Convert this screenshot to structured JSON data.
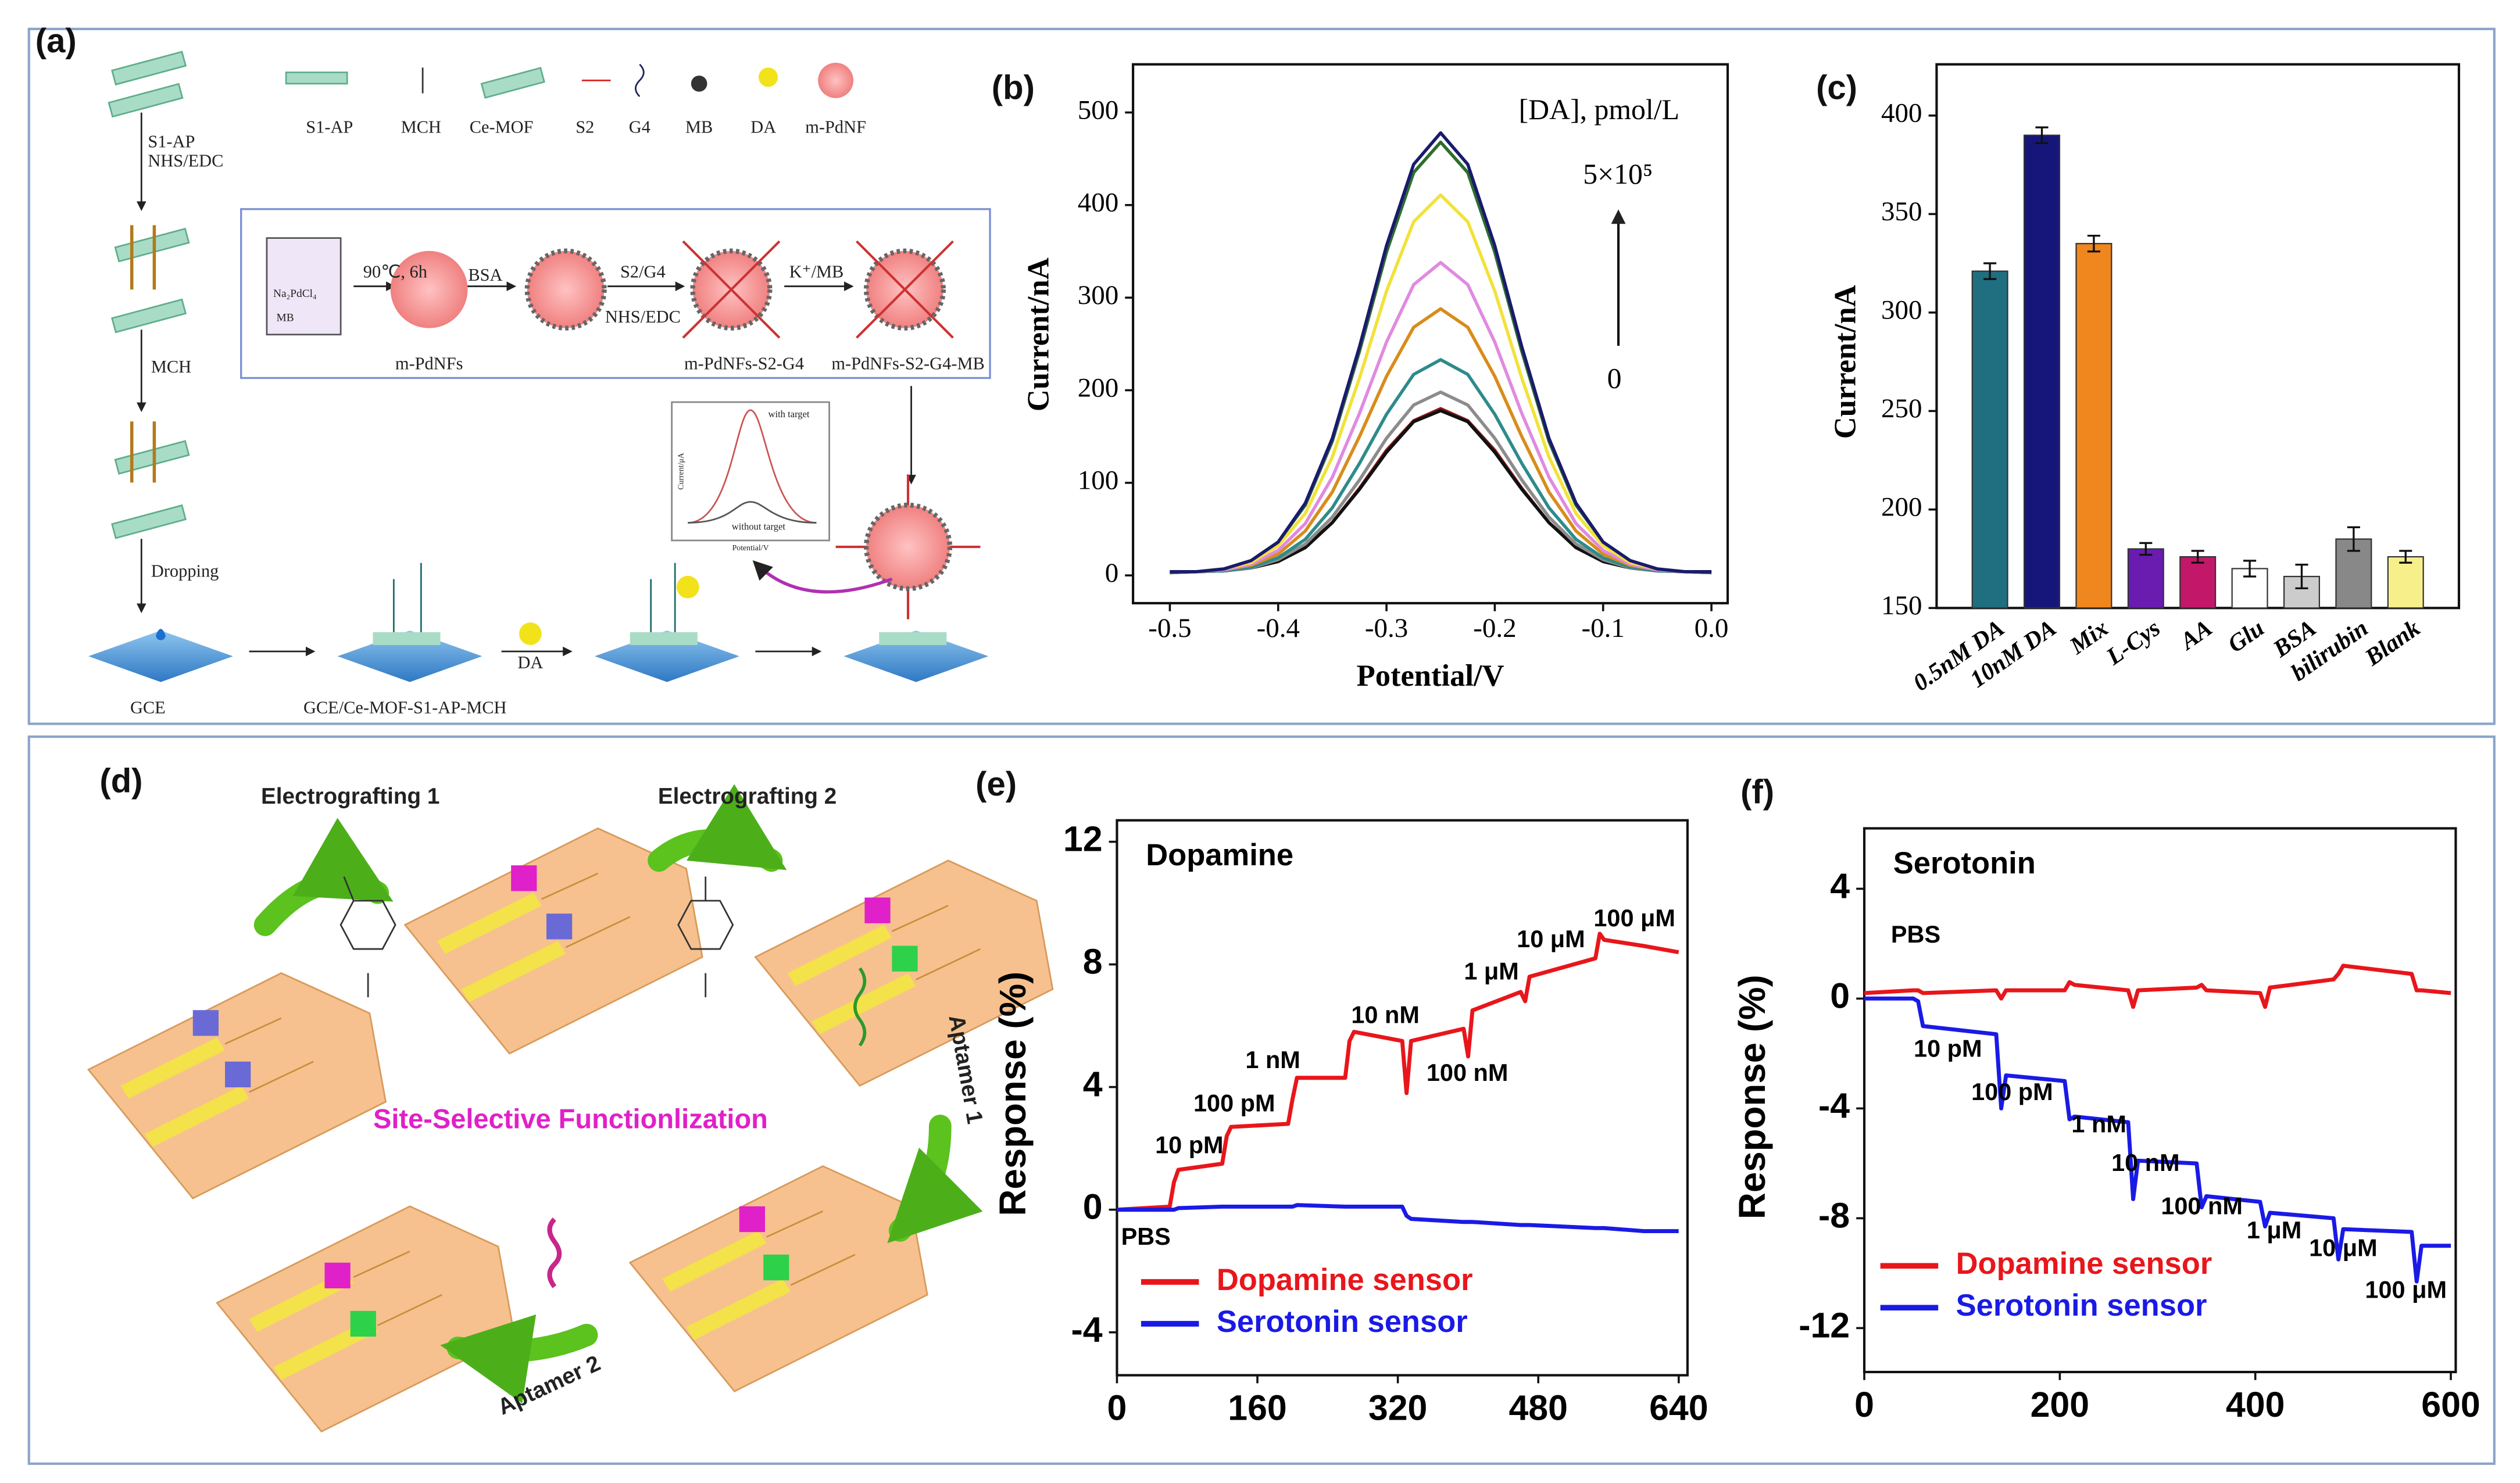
{
  "panel_labels": [
    "(a)",
    "(b)",
    "(c)",
    "(d)",
    "(e)",
    "(f)"
  ],
  "diagram_a": {
    "legend": [
      "S1-AP",
      "MCH",
      "Ce-MOF",
      "S2",
      "G4",
      "MB",
      "DA",
      "m-PdNF"
    ],
    "steps": [
      "S1-AP",
      "NHS/EDC",
      "MCH",
      "Dropping",
      "DA",
      "90℃, 6h",
      "BSA",
      "S2/G4",
      "NHS/EDC",
      "K⁺/MB"
    ],
    "products": [
      "GCE",
      "GCE/Ce-MOF-S1-AP-MCH",
      "m-PdNFs",
      "m-PdNFs-S2-G4",
      "m-PdNFs-S2-G4-MB"
    ],
    "beaker": [
      "Na₂PdCl₄",
      "MB"
    ],
    "inset": {
      "curves": [
        "with target",
        "without target"
      ],
      "xlabel": "Potential/V",
      "ylabel": "Current/μA"
    }
  },
  "diagram_d": {
    "steps": [
      "Electrografting 1",
      "Electrografting 2",
      "Aptamer 1",
      "Aptamer 2"
    ],
    "center": "Site-Selective Functionlization"
  },
  "chart_data": [
    {
      "type": "line",
      "xlabel": "Potential/V",
      "ylabel": "Current/nA",
      "annotations": [
        "[DA], pmol/L",
        "5×10⁵",
        "0"
      ],
      "x": [
        -0.5,
        -0.475,
        -0.45,
        -0.425,
        -0.4,
        -0.375,
        -0.35,
        -0.325,
        -0.3,
        -0.275,
        -0.25,
        -0.225,
        -0.2,
        -0.175,
        -0.15,
        -0.125,
        -0.1,
        -0.075,
        -0.05,
        -0.025,
        0
      ],
      "xlim": [
        -0.534,
        0.015
      ],
      "xticks": [
        -0.5,
        -0.4,
        -0.3,
        -0.2,
        -0.1,
        {
          "value": 0,
          "label": "0.0"
        }
      ],
      "ylim": [
        -30,
        552
      ],
      "yticks": [
        0,
        100,
        200,
        300,
        400,
        500
      ],
      "series": [
        {
          "color": "#8b1a1a",
          "values": [
            3,
            4,
            5,
            8,
            15,
            31,
            57,
            94,
            135,
            167,
            180,
            167,
            135,
            94,
            57,
            31,
            15,
            8,
            5,
            4,
            3
          ]
        },
        {
          "color": "#111111",
          "values": [
            3,
            4,
            5,
            8,
            15,
            30,
            57,
            93,
            133,
            166,
            178,
            166,
            133,
            93,
            57,
            30,
            15,
            8,
            5,
            4,
            3
          ]
        },
        {
          "color": "#8c8c8c",
          "values": [
            3,
            4,
            5,
            8,
            17,
            34,
            63,
            103,
            148,
            184,
            198,
            184,
            148,
            103,
            63,
            34,
            17,
            8,
            5,
            4,
            3
          ]
        },
        {
          "color": "#2e8b8b",
          "values": [
            3,
            4,
            5,
            9,
            19,
            39,
            73,
            121,
            174,
            217,
            233,
            217,
            174,
            121,
            73,
            39,
            19,
            9,
            5,
            4,
            3
          ]
        },
        {
          "color": "#d98c1a",
          "values": [
            3,
            4,
            6,
            11,
            23,
            48,
            90,
            150,
            215,
            268,
            288,
            268,
            215,
            150,
            90,
            48,
            23,
            11,
            6,
            4,
            3
          ]
        },
        {
          "color": "#e08ae0",
          "values": [
            3,
            4,
            6,
            12,
            27,
            56,
            106,
            175,
            252,
            314,
            338,
            314,
            252,
            175,
            106,
            56,
            27,
            12,
            6,
            4,
            3
          ]
        },
        {
          "color": "#f2e23a",
          "values": [
            3,
            4,
            7,
            14,
            32,
            67,
            128,
            213,
            307,
            382,
            411,
            382,
            307,
            213,
            128,
            67,
            32,
            14,
            7,
            4,
            3
          ]
        },
        {
          "color": "#2d6e2d",
          "values": [
            3,
            4,
            7,
            16,
            36,
            76,
            145,
            242,
            349,
            435,
            468,
            435,
            349,
            242,
            145,
            76,
            36,
            16,
            7,
            4,
            3
          ]
        },
        {
          "color": "#1a1a6e",
          "values": [
            4,
            4,
            7,
            16,
            36,
            78,
            148,
            247,
            356,
            444,
            478,
            444,
            356,
            247,
            148,
            78,
            36,
            16,
            7,
            4,
            4
          ]
        }
      ]
    },
    {
      "type": "bar",
      "ylabel": "Current/nA",
      "categories": [
        "0.5nM DA",
        "10nM DA",
        "Mix",
        "L-Cys",
        "AA",
        "Glu",
        "BSA",
        "bilirubin",
        "Blank"
      ],
      "values": [
        321,
        390,
        335,
        180,
        176,
        170,
        166,
        185,
        176
      ],
      "errors": [
        4,
        4,
        4,
        3,
        3,
        4,
        6,
        6,
        3
      ],
      "colors": [
        "#1f6f80",
        "#16167a",
        "#f0861e",
        "#6a1bb0",
        "#c3186a",
        "#ffffff",
        "#cccccc",
        "#888888",
        "#f7ef8a"
      ],
      "ylim": [
        150,
        426
      ],
      "yticks": [
        150,
        200,
        250,
        300,
        350,
        400
      ]
    },
    {
      "type": "line",
      "title": "Dopamine",
      "ylabel": "Response (%)",
      "legend": "lower left",
      "annotations": [
        "PBS",
        "10 pM",
        "100 pM",
        "1 nM",
        "10 nM",
        "100 nM",
        "1 μM",
        "10 μM",
        "100 μM"
      ],
      "x": [
        0,
        60,
        65,
        70,
        120,
        125,
        130,
        195,
        200,
        205,
        260,
        265,
        270,
        325,
        330,
        335,
        395,
        400,
        405,
        460,
        465,
        470,
        545,
        550,
        555,
        600,
        640
      ],
      "xlim": [
        0,
        650
      ],
      "xticks": [
        0,
        160,
        320,
        480,
        640
      ],
      "ylim": [
        -5.4,
        12.7
      ],
      "yticks": [
        -4,
        0,
        4,
        8,
        12
      ],
      "series": [
        {
          "name": "Dopamine sensor",
          "color": "#e8161b",
          "values": [
            0,
            0.1,
            0.9,
            1.3,
            1.5,
            2.4,
            2.7,
            2.8,
            3.6,
            4.3,
            4.3,
            5.5,
            5.8,
            5.5,
            3.8,
            5.5,
            5.9,
            5.0,
            6.5,
            7.1,
            6.8,
            7.6,
            8.2,
            9.0,
            8.8,
            8.6,
            8.4
          ]
        },
        {
          "name": "Serotonin sensor",
          "color": "#1a1ae6",
          "values": [
            0,
            0,
            0,
            0.05,
            0.1,
            0.1,
            0.1,
            0.1,
            0.1,
            0.15,
            0.1,
            0.1,
            0.1,
            0.1,
            -0.2,
            -0.3,
            -0.4,
            -0.4,
            -0.4,
            -0.5,
            -0.5,
            -0.5,
            -0.6,
            -0.6,
            -0.6,
            -0.7,
            -0.7
          ]
        }
      ]
    },
    {
      "type": "line",
      "title": "Serotonin",
      "ylabel": "Response (%)",
      "legend": "lower left",
      "annotations": [
        "PBS",
        "10 pM",
        "100 pM",
        "1 nM",
        "10 nM",
        "100 nM",
        "1 μM",
        "10 μM",
        "100 μM"
      ],
      "x": [
        0,
        50,
        55,
        60,
        135,
        140,
        145,
        205,
        210,
        215,
        270,
        275,
        280,
        340,
        345,
        350,
        405,
        410,
        415,
        480,
        485,
        490,
        560,
        565,
        570,
        600
      ],
      "xlim": [
        0,
        605
      ],
      "xticks": [
        0,
        200,
        400,
        600
      ],
      "ylim": [
        -13.6,
        6.2
      ],
      "yticks": [
        -12,
        -8,
        -4,
        0,
        4
      ],
      "series": [
        {
          "name": "Dopamine sensor",
          "color": "#e8161b",
          "values": [
            0.2,
            0.3,
            0.3,
            0.2,
            0.3,
            0.0,
            0.3,
            0.3,
            0.6,
            0.5,
            0.3,
            -0.3,
            0.3,
            0.4,
            0.5,
            0.3,
            0.2,
            -0.3,
            0.4,
            0.7,
            0.9,
            1.2,
            0.9,
            0.3,
            0.3,
            0.2
          ]
        },
        {
          "name": "Serotonin sensor",
          "color": "#1a1ae6",
          "values": [
            0,
            0,
            -0.1,
            -1.0,
            -1.3,
            -4.0,
            -2.8,
            -3.0,
            -4.4,
            -4.3,
            -4.5,
            -7.3,
            -5.9,
            -6.0,
            -7.6,
            -7.2,
            -7.4,
            -8.3,
            -7.8,
            -8.0,
            -9.5,
            -8.4,
            -8.5,
            -10.3,
            -9.0,
            -9.0
          ]
        }
      ]
    }
  ]
}
